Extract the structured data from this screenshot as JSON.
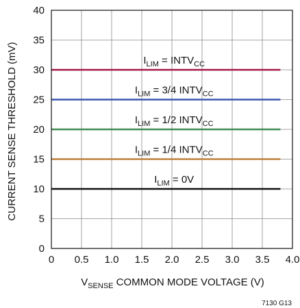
{
  "chart_data": {
    "type": "line",
    "title": "",
    "xlabel": {
      "base": "V",
      "sub": "SENSE",
      "rest": " COMMON MODE VOLTAGE (V)"
    },
    "ylabel": "CURRENT SENSE THRESHOLD (mV)",
    "xlim": [
      0,
      4.0
    ],
    "ylim": [
      0,
      40
    ],
    "x_ticks": [
      "0",
      "0.5",
      "1.0",
      "1.5",
      "2.0",
      "2.5",
      "3.0",
      "3.5",
      "4.0"
    ],
    "y_ticks": [
      "0",
      "5",
      "10",
      "15",
      "20",
      "25",
      "30",
      "35",
      "40"
    ],
    "grid": true,
    "series": [
      {
        "name": "I_LIM = INTV_CC",
        "label": {
          "a": "I",
          "a_sub": "LIM",
          "b": " = INTV",
          "b_sub": "CC"
        },
        "color": "#a3174a",
        "x": [
          0,
          3.8
        ],
        "y": [
          30,
          30
        ]
      },
      {
        "name": "I_LIM = 3/4 INTV_CC",
        "label": {
          "a": "I",
          "a_sub": "LIM",
          "b": " = 3/4 INTV",
          "b_sub": "CC"
        },
        "color": "#3d56b0",
        "x": [
          0,
          3.8
        ],
        "y": [
          25,
          25
        ]
      },
      {
        "name": "I_LIM = 1/2 INTV_CC",
        "label": {
          "a": "I",
          "a_sub": "LIM",
          "b": " = 1/2 INTV",
          "b_sub": "CC"
        },
        "color": "#3c8a4e",
        "x": [
          0,
          3.8
        ],
        "y": [
          20,
          20
        ]
      },
      {
        "name": "I_LIM = 1/4 INTV_CC",
        "label": {
          "a": "I",
          "a_sub": "LIM",
          "b": " = 1/4 INTV",
          "b_sub": "CC"
        },
        "color": "#c08040",
        "x": [
          0,
          3.8
        ],
        "y": [
          15,
          15
        ]
      },
      {
        "name": "I_LIM = 0V",
        "label": {
          "a": "I",
          "a_sub": "LIM",
          "b": " = 0V",
          "b_sub": ""
        },
        "color": "#111111",
        "x": [
          0,
          3.8
        ],
        "y": [
          10,
          10
        ]
      }
    ],
    "figure_id": "7130 G13"
  }
}
